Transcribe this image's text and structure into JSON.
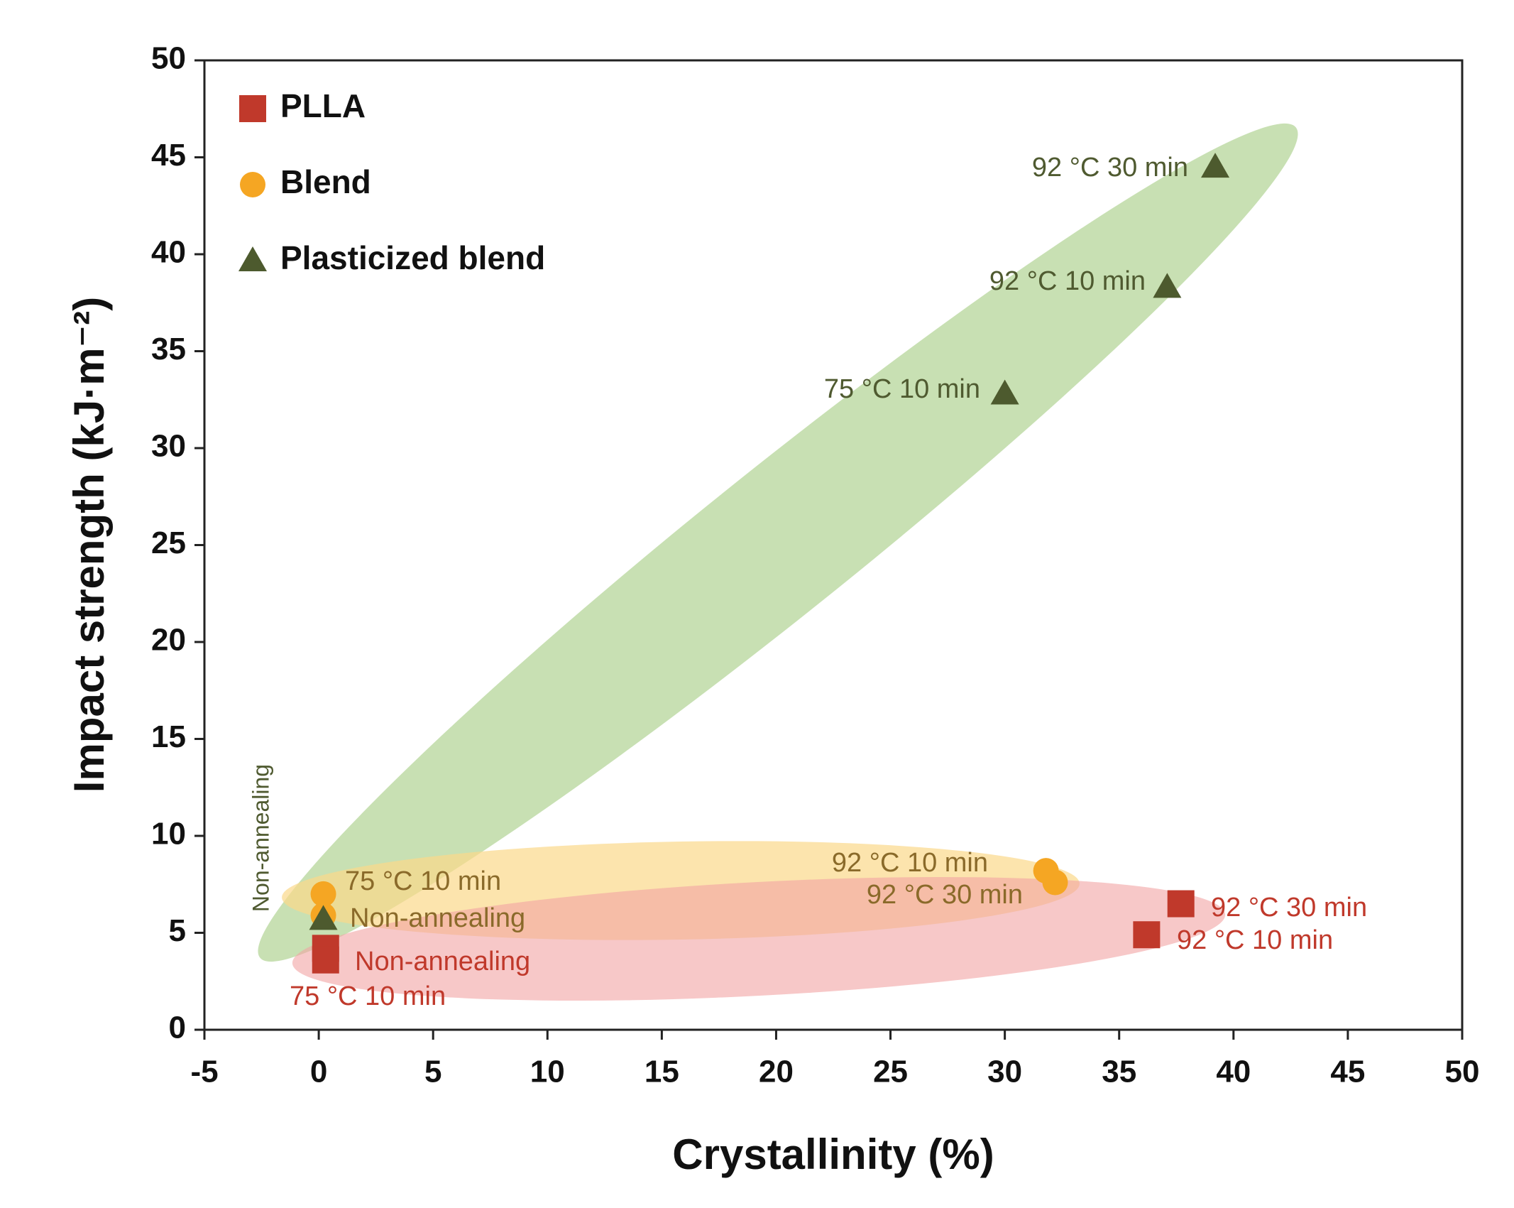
{
  "chart_data": {
    "type": "scatter",
    "x_label": "Crystallinity (%)",
    "y_label": "Impact strength (kJ·m⁻²)",
    "xlim": [
      -5,
      50
    ],
    "ylim": [
      0,
      50
    ],
    "xticks": [
      -5,
      0,
      5,
      10,
      15,
      20,
      25,
      30,
      35,
      40,
      45,
      50
    ],
    "yticks": [
      0,
      5,
      10,
      15,
      20,
      25,
      30,
      35,
      40,
      45,
      50
    ],
    "legend": "upper left",
    "series": [
      {
        "name": "PLLA",
        "color": "#c0392b",
        "marker": "square",
        "x": [
          0.3,
          0.3,
          36.2,
          37.7
        ],
        "values": [
          4.2,
          3.6,
          4.9,
          6.5
        ],
        "labels": [
          "Non-annealing",
          "75 °C 10 min",
          "92 °C 10 min",
          "92 °C 30 min"
        ]
      },
      {
        "name": "Blend",
        "color": "#f5a623",
        "marker": "circle",
        "x": [
          0.2,
          0.2,
          31.8,
          32.2
        ],
        "values": [
          5.9,
          7.0,
          8.2,
          7.6
        ],
        "labels": [
          "Non-annealing",
          "75 °C 10 min",
          "92 °C 10 min",
          "92 °C 30 min"
        ]
      },
      {
        "name": "Plasticized blend",
        "color": "#4d5a2e",
        "marker": "triangle",
        "x": [
          0.2,
          30.0,
          37.1,
          39.2
        ],
        "values": [
          5.7,
          32.8,
          38.3,
          44.5
        ],
        "labels": [
          "Non-annealing",
          "75 °C 10 min",
          "92 °C 10 min",
          "92 °C 30 min"
        ]
      }
    ]
  }
}
